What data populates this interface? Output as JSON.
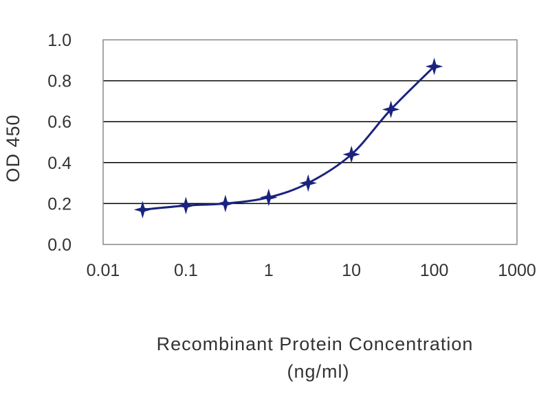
{
  "chart_data": {
    "type": "line",
    "title": "",
    "xlabel": "Recombinant Protein Concentration",
    "xlabel_unit": "(ng/ml)",
    "ylabel": "OD 450",
    "x_scale": "log",
    "xlim": [
      0.01,
      1000
    ],
    "ylim": [
      0.0,
      1.0
    ],
    "x_ticks": [
      "0.01",
      "0.1",
      "1",
      "10",
      "100",
      "1000"
    ],
    "y_ticks": [
      "0.0",
      "0.2",
      "0.4",
      "0.6",
      "0.8",
      "1.0"
    ],
    "grid": "horizontal",
    "legend": "none",
    "series": [
      {
        "marker": "star",
        "x": [
          0.03,
          0.1,
          0.3,
          1,
          3,
          10,
          30,
          100
        ],
        "y": [
          0.17,
          0.19,
          0.2,
          0.23,
          0.3,
          0.44,
          0.66,
          0.87
        ]
      }
    ],
    "colors": {
      "series": "#1a237e",
      "grid": "#000000",
      "plot_border": "#888888"
    }
  }
}
